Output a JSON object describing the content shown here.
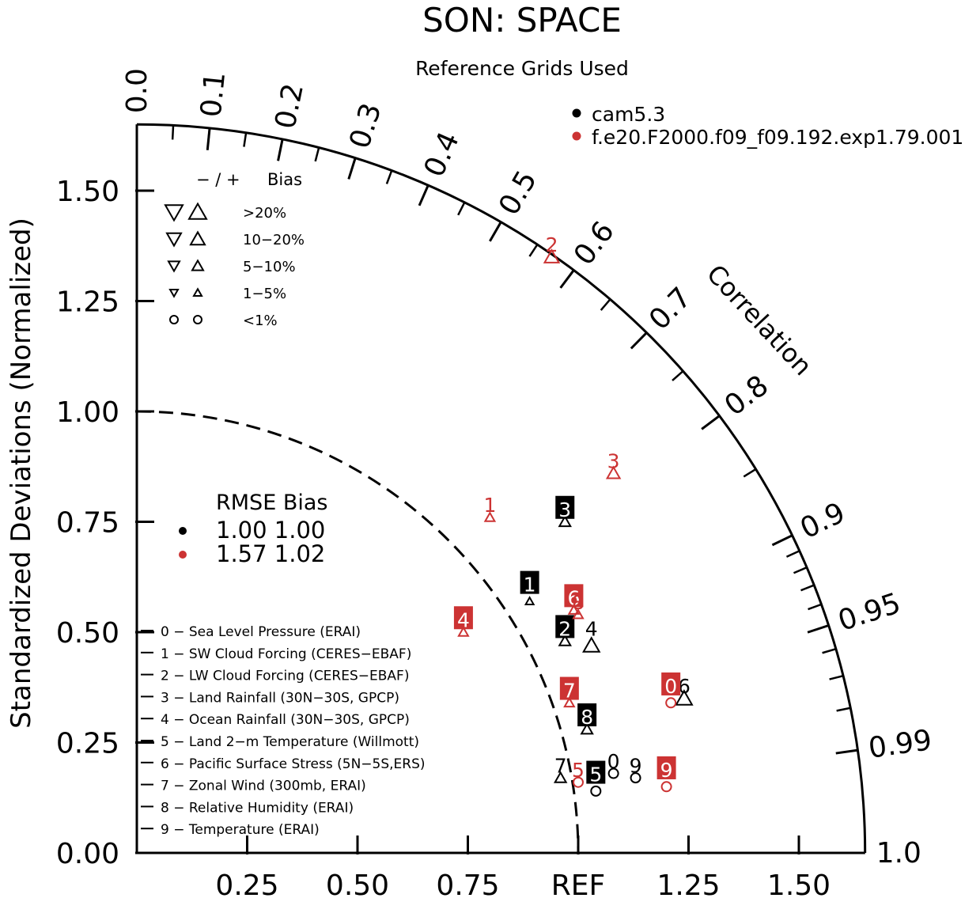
{
  "colors": {
    "black": "#000000",
    "red": "#cc3333",
    "boxText": "#ffffff"
  },
  "chart_data": {
    "type": "taylor",
    "title": "SON: SPACE",
    "subtitle": "Reference Grids Used",
    "ylabel": "Standardized Deviations (Normalized)",
    "corr_label": "Correlation",
    "ref_label": "REF",
    "std_max": 1.65,
    "reference_std": 1.0,
    "y_ticks": [
      "0.00",
      "0.25",
      "0.50",
      "0.75",
      "1.00",
      "1.25",
      "1.50"
    ],
    "x_ticks": [
      "0.25",
      "0.50",
      "0.75",
      "1.25",
      "1.50"
    ],
    "corr_labels": [
      "0.0",
      "0.1",
      "0.2",
      "0.3",
      "0.4",
      "0.5",
      "0.6",
      "0.7",
      "0.8",
      "0.9",
      "0.95",
      "0.99",
      "1.0"
    ],
    "models": [
      {
        "name": "cam5.3",
        "color": "black"
      },
      {
        "name": "f.e20.F2000.f09_f09.192.exp1.79.001",
        "color": "red"
      }
    ],
    "bias_legend": {
      "header": "− / +",
      "header_bias": "Bias",
      "rows": [
        {
          "label": ">20%",
          "marker": "tri",
          "size": 11
        },
        {
          "label": "10−20%",
          "marker": "tri",
          "size": 9
        },
        {
          "label": "5−10%",
          "marker": "tri",
          "size": 7
        },
        {
          "label": "1−5%",
          "marker": "tri",
          "size": 5
        },
        {
          "label": "<1%",
          "marker": "circle",
          "size": 5
        }
      ]
    },
    "rmse_table": {
      "header": "RMSE Bias",
      "rows": [
        {
          "color": "black",
          "text": "1.00  1.00"
        },
        {
          "color": "red",
          "text": "1.57  1.02"
        }
      ]
    },
    "variables": [
      "0 − Sea Level Pressure (ERAI)",
      "1 − SW Cloud Forcing (CERES−EBAF)",
      "2 − LW Cloud Forcing (CERES−EBAF)",
      "3 − Land Rainfall (30N−30S, GPCP)",
      "4 − Ocean Rainfall (30N−30S, GPCP)",
      "5 − Land 2−m Temperature (Willmott)",
      "6 − Pacific Surface Stress (5N−5S,ERS)",
      "7 − Zonal Wind (300mb, ERAI)",
      "8 − Relative Humidity (ERAI)",
      "9 − Temperature (ERAI)"
    ],
    "points": [
      {
        "id": "0",
        "model": "black",
        "x": 1.08,
        "y": 0.18,
        "marker": "circle",
        "size": 6,
        "boxed": false,
        "lx": 1.08,
        "ly": 0.21
      },
      {
        "id": "1",
        "model": "black",
        "x": 0.89,
        "y": 0.57,
        "marker": "tri",
        "size": 5,
        "boxed": true,
        "lx": 0.89,
        "ly": 0.61
      },
      {
        "id": "2",
        "model": "black",
        "x": 0.97,
        "y": 0.48,
        "marker": "tri",
        "size": 7,
        "boxed": true,
        "lx": 0.97,
        "ly": 0.51
      },
      {
        "id": "3",
        "model": "black",
        "x": 0.97,
        "y": 0.75,
        "marker": "tri",
        "size": 7,
        "boxed": true,
        "lx": 0.97,
        "ly": 0.78
      },
      {
        "id": "4",
        "model": "black",
        "x": 1.03,
        "y": 0.47,
        "marker": "tri",
        "size": 10,
        "boxed": false,
        "lx": 1.03,
        "ly": 0.51
      },
      {
        "id": "5",
        "model": "black",
        "x": 1.04,
        "y": 0.14,
        "marker": "circle",
        "size": 6,
        "boxed": true,
        "lx": 1.04,
        "ly": 0.18
      },
      {
        "id": "6",
        "model": "black",
        "x": 1.24,
        "y": 0.35,
        "marker": "tri",
        "size": 10,
        "boxed": false,
        "lx": 1.24,
        "ly": 0.38
      },
      {
        "id": "7",
        "model": "black",
        "x": 0.96,
        "y": 0.17,
        "marker": "tri",
        "size": 7,
        "boxed": false,
        "lx": 0.96,
        "ly": 0.2
      },
      {
        "id": "8",
        "model": "black",
        "x": 1.02,
        "y": 0.28,
        "marker": "tri",
        "size": 7,
        "boxed": true,
        "lx": 1.02,
        "ly": 0.31
      },
      {
        "id": "9",
        "model": "black",
        "x": 1.13,
        "y": 0.17,
        "marker": "circle",
        "size": 6,
        "boxed": false,
        "lx": 1.13,
        "ly": 0.2
      },
      {
        "id": "0",
        "model": "red",
        "x": 1.21,
        "y": 0.34,
        "marker": "circle",
        "size": 6,
        "boxed": true,
        "lx": 1.21,
        "ly": 0.38
      },
      {
        "id": "1",
        "model": "red",
        "x": 0.8,
        "y": 0.76,
        "marker": "tri",
        "size": 6,
        "boxed": false,
        "lx": 0.8,
        "ly": 0.79
      },
      {
        "id": "2",
        "model": "red",
        "x": 0.94,
        "y": 1.35,
        "marker": "tri",
        "size": 9,
        "boxed": false,
        "lx": 0.94,
        "ly": 1.38
      },
      {
        "id": "3",
        "model": "red",
        "x": 1.08,
        "y": 0.86,
        "marker": "tri",
        "size": 8,
        "boxed": false,
        "lx": 1.08,
        "ly": 0.89
      },
      {
        "id": "4",
        "model": "red",
        "x": 0.74,
        "y": 0.5,
        "marker": "tri",
        "size": 6,
        "boxed": true,
        "lx": 0.74,
        "ly": 0.53
      },
      {
        "id": "5",
        "model": "red",
        "x": 1.0,
        "y": 0.16,
        "marker": "circle",
        "size": 6,
        "boxed": false,
        "lx": 1.0,
        "ly": 0.19
      },
      {
        "id": "6",
        "model": "red",
        "x": 0.99,
        "y": 0.55,
        "marker": "tri",
        "size": 6,
        "boxed": true,
        "lx": 0.99,
        "ly": 0.58
      },
      {
        "id": "8",
        "model": "red",
        "x": 1.0,
        "y": 0.54,
        "marker": "tri",
        "size": 6,
        "boxed": false,
        "lx": 1.0,
        "ly": 0.57
      },
      {
        "id": "7",
        "model": "red",
        "x": 0.98,
        "y": 0.34,
        "marker": "tri",
        "size": 6,
        "boxed": true,
        "lx": 0.98,
        "ly": 0.37
      },
      {
        "id": "9",
        "model": "red",
        "x": 1.2,
        "y": 0.15,
        "marker": "circle",
        "size": 6,
        "boxed": true,
        "lx": 1.2,
        "ly": 0.19
      }
    ]
  }
}
